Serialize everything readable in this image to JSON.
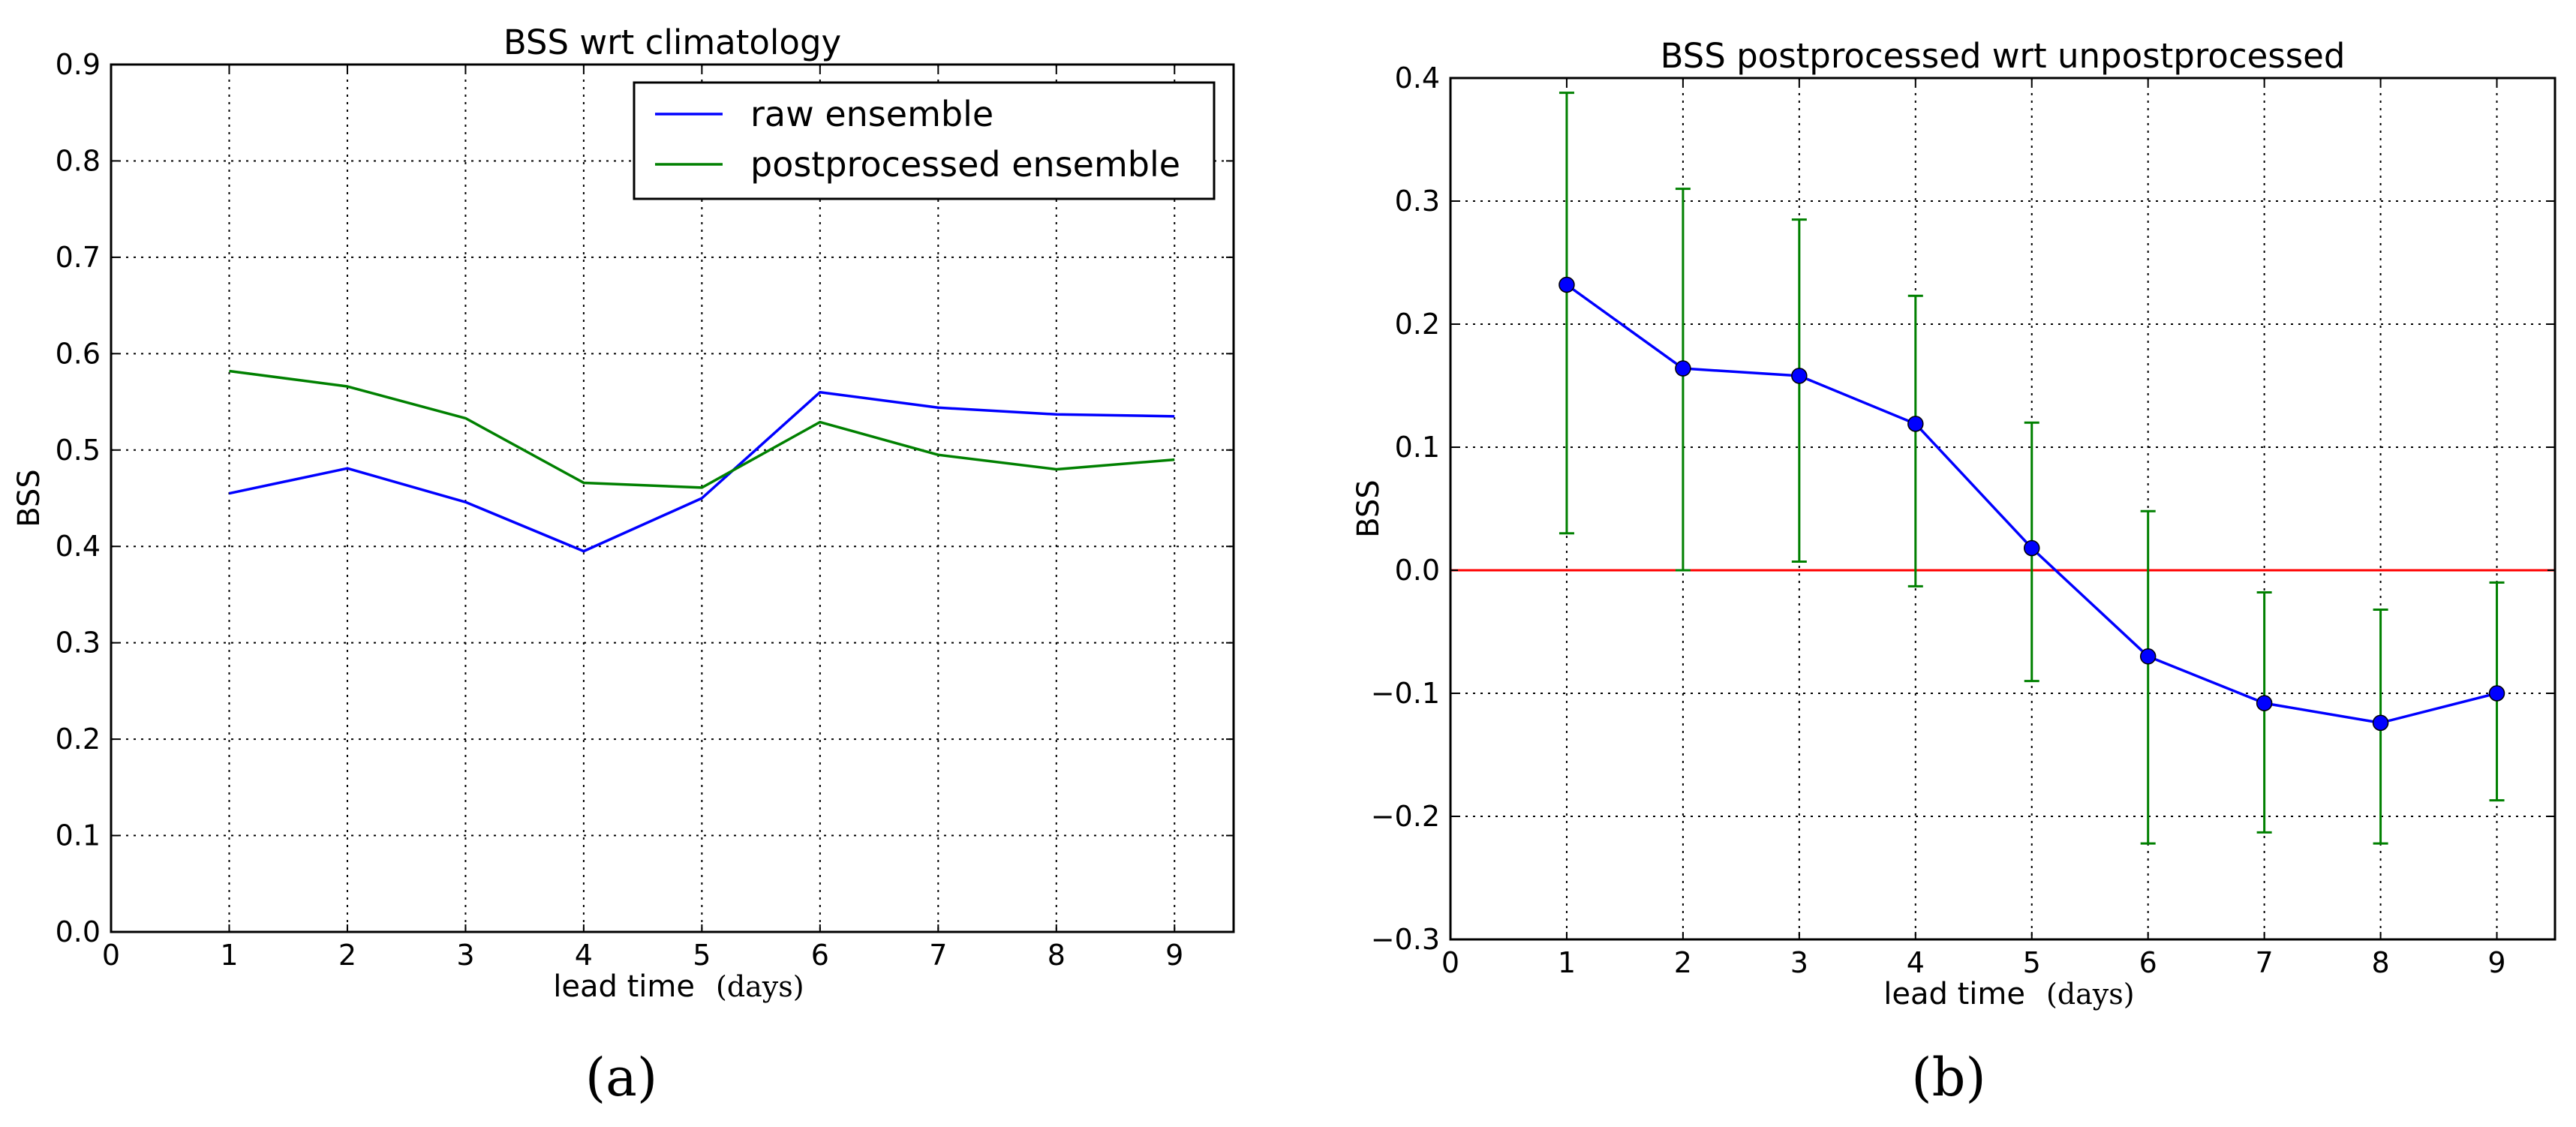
{
  "panels": [
    {
      "caption": "(a)",
      "chart_data": {
        "type": "line",
        "title": "BSS wrt climatology",
        "xlabel": "lead time",
        "xlabel_unit": "(days)",
        "ylabel": "BSS",
        "xlim": [
          0,
          9.5
        ],
        "ylim": [
          0,
          0.9
        ],
        "xticks": [
          0,
          1,
          2,
          3,
          4,
          5,
          6,
          7,
          8,
          9
        ],
        "yticks": [
          0.0,
          0.1,
          0.2,
          0.3,
          0.4,
          0.5,
          0.6,
          0.7,
          0.8,
          0.9
        ],
        "xtick_labels": [
          "0",
          "1",
          "2",
          "3",
          "4",
          "5",
          "6",
          "7",
          "8",
          "9"
        ],
        "ytick_labels": [
          "0.0",
          "0.1",
          "0.2",
          "0.3",
          "0.4",
          "0.5",
          "0.6",
          "0.7",
          "0.8",
          "0.9"
        ],
        "grid": true,
        "legend_position": "top-right",
        "x": [
          1,
          2,
          3,
          4,
          5,
          6,
          7,
          8,
          9
        ],
        "series": [
          {
            "name": "raw ensemble",
            "color": "#0000ff",
            "values": [
              0.455,
              0.481,
              0.446,
              0.395,
              0.45,
              0.56,
              0.544,
              0.537,
              0.535
            ]
          },
          {
            "name": "postprocessed ensemble",
            "color": "#008000",
            "values": [
              0.582,
              0.566,
              0.533,
              0.466,
              0.461,
              0.529,
              0.495,
              0.48,
              0.49
            ]
          }
        ]
      }
    },
    {
      "caption": "(b)",
      "chart_data": {
        "type": "line",
        "title": "BSS postprocessed wrt unpostprocessed",
        "xlabel": "lead time",
        "xlabel_unit": "(days)",
        "ylabel": "BSS",
        "xlim": [
          0,
          9.5
        ],
        "ylim": [
          -0.3,
          0.4
        ],
        "xticks": [
          0,
          1,
          2,
          3,
          4,
          5,
          6,
          7,
          8,
          9
        ],
        "yticks": [
          -0.3,
          -0.2,
          -0.1,
          0.0,
          0.1,
          0.2,
          0.3,
          0.4
        ],
        "xtick_labels": [
          "0",
          "1",
          "2",
          "3",
          "4",
          "5",
          "6",
          "7",
          "8",
          "9"
        ],
        "ytick_labels": [
          "−0.3",
          "−0.2",
          "−0.1",
          "0.0",
          "0.1",
          "0.2",
          "0.3",
          "0.4"
        ],
        "grid": true,
        "reference_line": {
          "y": 0,
          "color": "#ff0000"
        },
        "x": [
          1,
          2,
          3,
          4,
          5,
          6,
          7,
          8,
          9
        ],
        "series": [
          {
            "name": "BSS",
            "color": "#0000ff",
            "errorbar_color": "#008000",
            "values": [
              0.232,
              0.164,
              0.158,
              0.119,
              0.018,
              -0.07,
              -0.108,
              -0.124,
              -0.1
            ],
            "lower": [
              0.03,
              0.0,
              0.007,
              -0.013,
              -0.09,
              -0.222,
              -0.213,
              -0.222,
              -0.187
            ],
            "upper": [
              0.388,
              0.31,
              0.285,
              0.223,
              0.12,
              0.048,
              -0.018,
              -0.032,
              -0.01
            ]
          }
        ]
      }
    }
  ]
}
